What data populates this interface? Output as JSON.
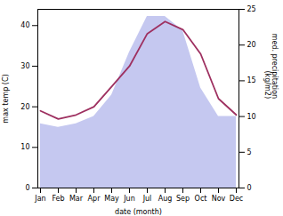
{
  "chart_data": {
    "type": "line",
    "x_label": "date (month)",
    "y_label": "max temp (C)",
    "y2_label": "med. precipitation\n(kg/m2)",
    "categories": [
      "Jan",
      "Feb",
      "Mar",
      "Apr",
      "May",
      "Jun",
      "Jul",
      "Aug",
      "Sep",
      "Oct",
      "Nov",
      "Dec"
    ],
    "series": [
      {
        "type": "area",
        "axis": "y2",
        "color": "#c5c8f0",
        "values": [
          9,
          8.5,
          9,
          10,
          13,
          19,
          24,
          24,
          22,
          14,
          10,
          10
        ]
      },
      {
        "type": "line",
        "color": "#9e3060",
        "values": [
          19,
          17,
          18,
          20,
          25,
          30,
          38,
          41,
          39,
          33,
          22,
          18
        ]
      }
    ],
    "ylim": [
      0,
      44
    ],
    "yticks": [
      0,
      10,
      20,
      30,
      40
    ],
    "y2lim": [
      0,
      25
    ],
    "y2ticks": [
      0,
      5,
      10,
      15,
      20,
      25
    ],
    "grid": false
  }
}
